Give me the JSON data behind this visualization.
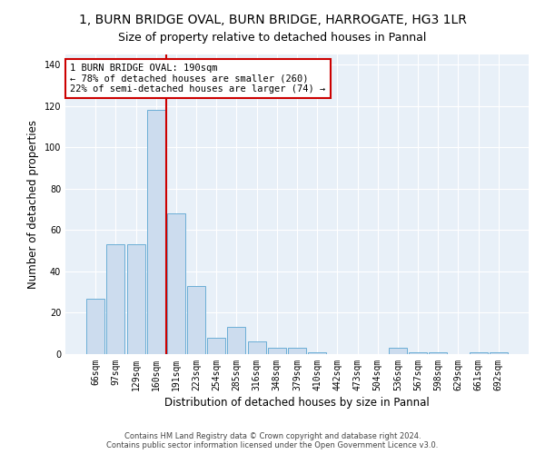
{
  "title": "1, BURN BRIDGE OVAL, BURN BRIDGE, HARROGATE, HG3 1LR",
  "subtitle": "Size of property relative to detached houses in Pannal",
  "xlabel": "Distribution of detached houses by size in Pannal",
  "ylabel": "Number of detached properties",
  "categories": [
    "66sqm",
    "97sqm",
    "129sqm",
    "160sqm",
    "191sqm",
    "223sqm",
    "254sqm",
    "285sqm",
    "316sqm",
    "348sqm",
    "379sqm",
    "410sqm",
    "442sqm",
    "473sqm",
    "504sqm",
    "536sqm",
    "567sqm",
    "598sqm",
    "629sqm",
    "661sqm",
    "692sqm"
  ],
  "values": [
    27,
    53,
    53,
    118,
    68,
    33,
    8,
    13,
    6,
    3,
    3,
    1,
    0,
    0,
    0,
    3,
    1,
    1,
    0,
    1,
    1
  ],
  "bar_color": "#ccdcee",
  "bar_edge_color": "#6baed6",
  "bar_edge_width": 0.7,
  "vline_index": 3.5,
  "vline_color": "#cc0000",
  "annotation_line1": "1 BURN BRIDGE OVAL: 190sqm",
  "annotation_line2": "← 78% of detached houses are smaller (260)",
  "annotation_line3": "22% of semi-detached houses are larger (74) →",
  "annotation_box_color": "#cc0000",
  "ylim": [
    0,
    145
  ],
  "yticks": [
    0,
    20,
    40,
    60,
    80,
    100,
    120,
    140
  ],
  "footer1": "Contains HM Land Registry data © Crown copyright and database right 2024.",
  "footer2": "Contains public sector information licensed under the Open Government Licence v3.0.",
  "plot_bg_color": "#e8f0f8",
  "fig_bg_color": "#ffffff",
  "title_fontsize": 10,
  "subtitle_fontsize": 9,
  "label_fontsize": 8.5,
  "tick_fontsize": 7,
  "annotation_fontsize": 7.5,
  "footer_fontsize": 6
}
